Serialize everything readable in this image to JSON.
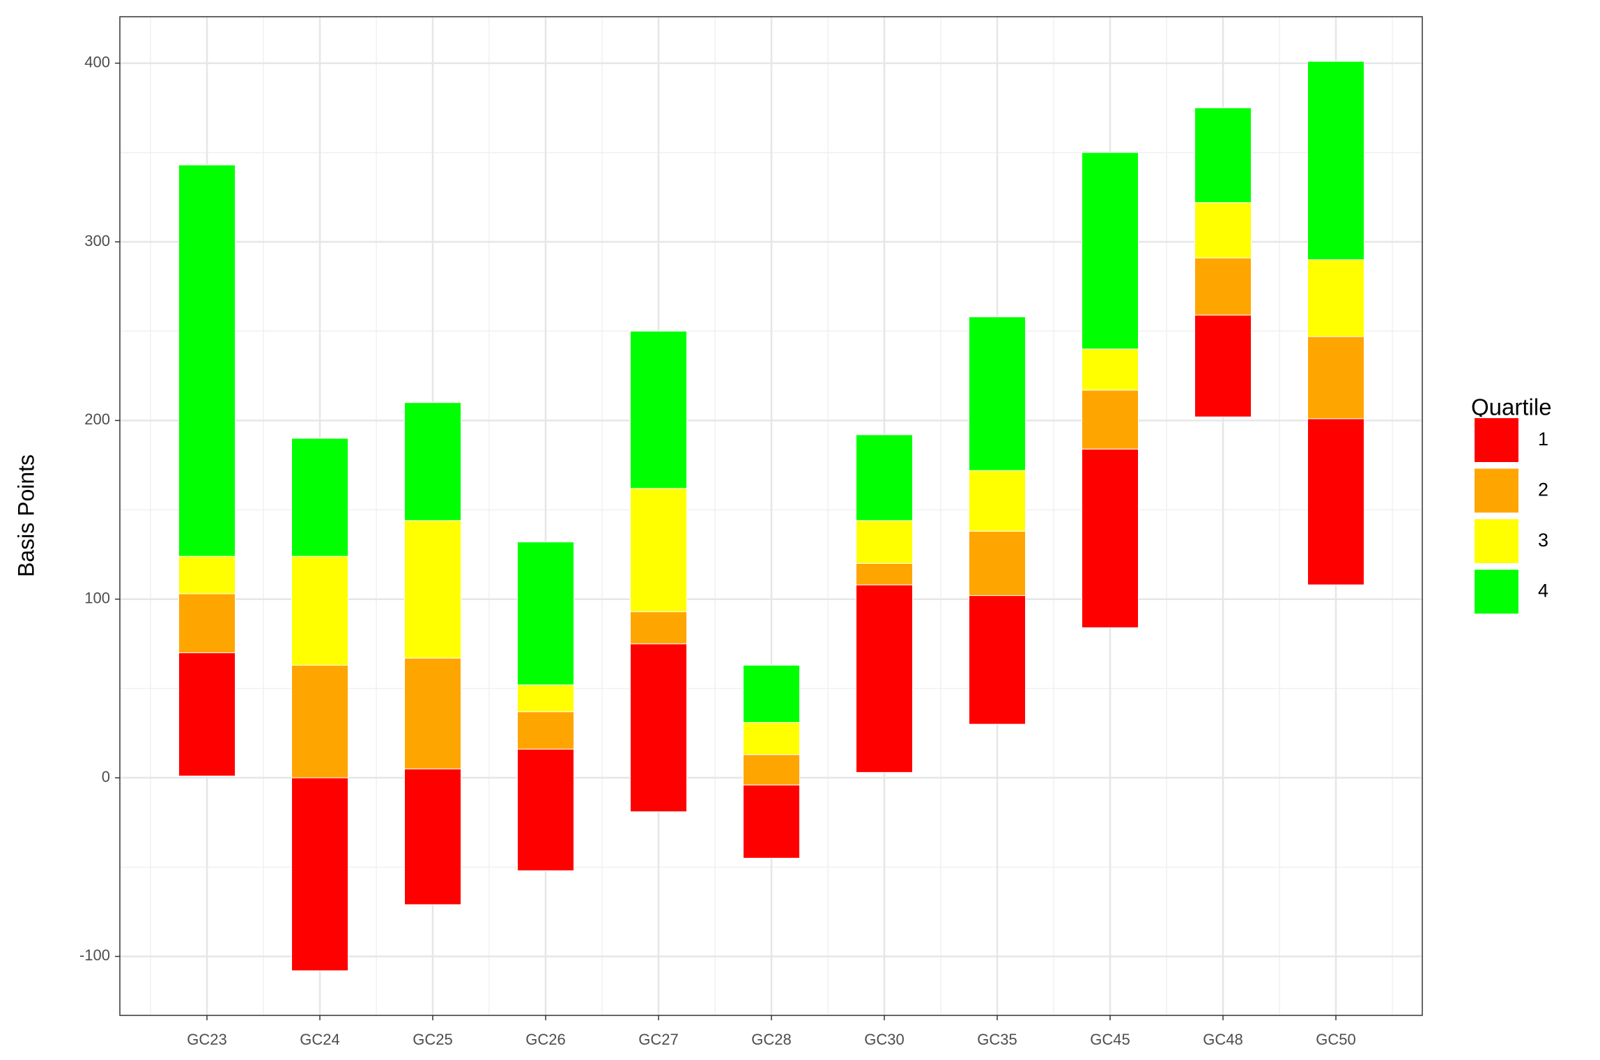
{
  "chart_data": {
    "type": "floating_stacked_bar",
    "y_label": "Basis Points",
    "legend_title": "Quartile",
    "legend_position": "right",
    "grid": true,
    "categories": [
      "GC23",
      "GC24",
      "GC25",
      "GC26",
      "GC27",
      "GC28",
      "GC30",
      "GC35",
      "GC45",
      "GC48",
      "GC50"
    ],
    "ylim": [
      -133,
      426
    ],
    "yticks": [
      -100,
      0,
      100,
      200,
      300,
      400
    ],
    "series": [
      {
        "name": "1",
        "color": "#ff0000",
        "values": [
          [
            1,
            70
          ],
          [
            -108,
            0
          ],
          [
            -71,
            5
          ],
          [
            -52,
            16
          ],
          [
            -19,
            75
          ],
          [
            -45,
            -4
          ],
          [
            3,
            108
          ],
          [
            30,
            102
          ],
          [
            84,
            184
          ],
          [
            202,
            259
          ],
          [
            108,
            201
          ]
        ]
      },
      {
        "name": "2",
        "color": "#ffa500",
        "values": [
          [
            70,
            103
          ],
          [
            0,
            63
          ],
          [
            5,
            67
          ],
          [
            16,
            37
          ],
          [
            75,
            93
          ],
          [
            -4,
            13
          ],
          [
            108,
            120
          ],
          [
            102,
            138
          ],
          [
            184,
            217
          ],
          [
            259,
            291
          ],
          [
            201,
            247
          ]
        ]
      },
      {
        "name": "3",
        "color": "#ffff00",
        "values": [
          [
            103,
            124
          ],
          [
            63,
            124
          ],
          [
            67,
            144
          ],
          [
            37,
            52
          ],
          [
            93,
            162
          ],
          [
            13,
            31
          ],
          [
            120,
            144
          ],
          [
            138,
            172
          ],
          [
            217,
            240
          ],
          [
            291,
            322
          ],
          [
            247,
            290
          ]
        ]
      },
      {
        "name": "4",
        "color": "#00ff00",
        "values": [
          [
            124,
            343
          ],
          [
            124,
            190
          ],
          [
            144,
            210
          ],
          [
            52,
            132
          ],
          [
            162,
            250
          ],
          [
            31,
            63
          ],
          [
            144,
            192
          ],
          [
            172,
            258
          ],
          [
            240,
            350
          ],
          [
            322,
            375
          ],
          [
            290,
            401
          ]
        ]
      }
    ]
  }
}
